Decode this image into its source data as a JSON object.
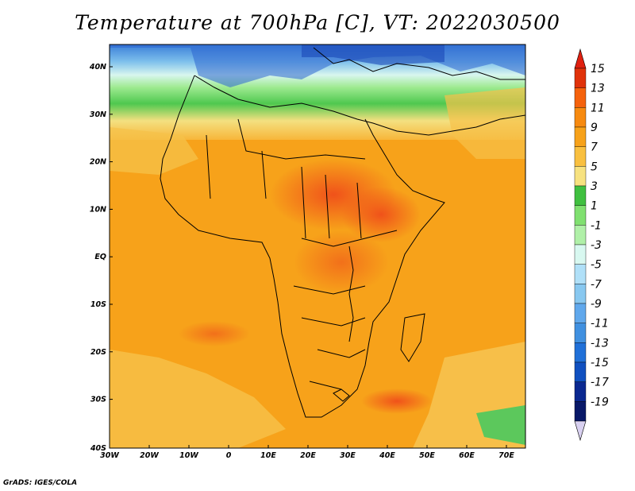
{
  "title": "Temperature at 700hPa [C], VT: 2022030500",
  "credit": "GrADS: IGES/COLA",
  "x_axis_labels": [
    "30W",
    "20W",
    "10W",
    "0",
    "10E",
    "20E",
    "30E",
    "40E",
    "50E",
    "60E",
    "70E"
  ],
  "y_axis_labels": [
    "40N",
    "30N",
    "20N",
    "10N",
    "EQ",
    "10S",
    "20S",
    "30S",
    "40S"
  ],
  "colorbar": {
    "labels": [
      "15",
      "13",
      "11",
      "9",
      "7",
      "5",
      "3",
      "1",
      "-1",
      "-3",
      "-5",
      "-7",
      "-9",
      "-11",
      "-13",
      "-15",
      "-17",
      "-19"
    ],
    "colors": [
      "#e0320a",
      "#f5620c",
      "#f78a10",
      "#f7a21a",
      "#f9c040",
      "#f7e280",
      "#40c040",
      "#80e070",
      "#b0f0a8",
      "#d8f8f0",
      "#b0e0f8",
      "#88c8f0",
      "#60a8ec",
      "#4090e0",
      "#2070d8",
      "#1050c0",
      "#0a2890",
      "#081868"
    ],
    "top_arrow_color": "#e02010",
    "bottom_arrow_color": "#d8d0f0"
  }
}
